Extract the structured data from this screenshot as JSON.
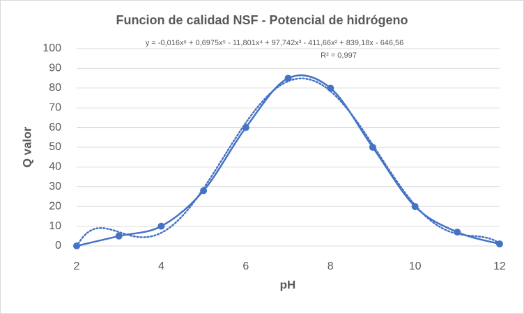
{
  "chart_data": {
    "type": "scatter-smooth",
    "title": "Funcion de calidad NSF - Potencial de hidrógeno",
    "x_label": "pH",
    "y_label": "Q valor",
    "x": [
      2,
      3,
      4,
      5,
      6,
      7,
      8,
      9,
      10,
      11,
      12
    ],
    "series": [
      {
        "name": "Q valor",
        "color": "#4472c4",
        "values": [
          0,
          5,
          10,
          28,
          60,
          85,
          80,
          50,
          20,
          7,
          1
        ]
      }
    ],
    "xlim": [
      2,
      12
    ],
    "xticks": [
      2,
      4,
      6,
      8,
      10,
      12
    ],
    "ylim": [
      0,
      100
    ],
    "yticks": [
      0,
      10,
      20,
      30,
      40,
      50,
      60,
      70,
      80,
      90,
      100
    ],
    "grid": true,
    "trendline": {
      "type": "polynomial",
      "order": 6,
      "style": "dotted",
      "equation": "y = -0,016x⁶ + 0,6975x⁵ - 11,801x⁴ + 97,742x³ - 411,66x² + 839,18x - 646,56",
      "r2": "R² = 0,997"
    }
  }
}
